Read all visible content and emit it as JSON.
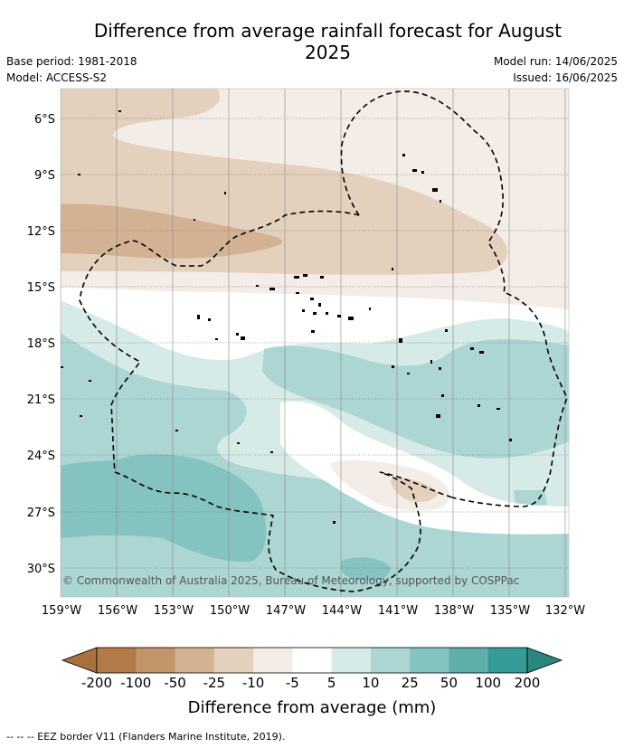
{
  "title": "Difference from average rainfall forecast for August 2025",
  "meta": {
    "base_period": "Base period: 1981-2018",
    "model": "Model: ACCESS-S2",
    "model_run": "Model run: 14/06/2025",
    "issued": "Issued: 16/06/2025"
  },
  "map": {
    "lat_labels": [
      "6°S",
      "9°S",
      "12°S",
      "15°S",
      "18°S",
      "21°S",
      "24°S",
      "27°S",
      "30°S"
    ],
    "lon_labels": [
      "159°W",
      "156°W",
      "153°W",
      "150°W",
      "147°W",
      "144°W",
      "141°W",
      "138°W",
      "135°W",
      "132°W"
    ],
    "copyright": "© Commonwealth of Australia 2025, Bureau of Meteorology, supported by COSPPac"
  },
  "legend": {
    "title": "Difference from average (mm)",
    "ticks": [
      "-200",
      "-100",
      "-50",
      "-25",
      "-10",
      "-5",
      "5",
      "10",
      "25",
      "50",
      "100",
      "200"
    ],
    "colors": [
      "#a8723e",
      "#b27a46",
      "#c29469",
      "#d3b293",
      "#e3d0bd",
      "#f4ece6",
      "#ffffff",
      "#d6eae8",
      "#acd6d4",
      "#85c3c0",
      "#5eaeaa",
      "#359c96",
      "#2b8680"
    ]
  },
  "footnote": "-- -- -- EEZ border V11 (Flanders Marine Institute, 2019)."
}
